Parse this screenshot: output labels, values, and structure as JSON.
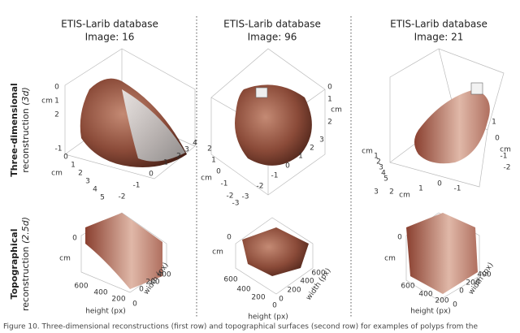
{
  "columns": [
    {
      "title": "ETIS-Larib database",
      "image": "Image: 16"
    },
    {
      "title": "ETIS-Larib database",
      "image": "Image: 96"
    },
    {
      "title": "ETIS-Larib database",
      "image": "Image: 21"
    }
  ],
  "rows": [
    {
      "label": "Three-dimensional",
      "sublabel": "reconstruction",
      "tag": "(3d)"
    },
    {
      "label": "Topographical",
      "sublabel": "reconstruction",
      "tag": "(2.5d)"
    }
  ],
  "panels": [
    {
      "ticks": [
        "0",
        "1",
        "2",
        "cm",
        "-1",
        "0",
        "1",
        "2",
        "3",
        "4",
        "5",
        "cm",
        "-2",
        "-1",
        "0",
        "1",
        "2",
        "3",
        "4"
      ]
    },
    {
      "ticks": [
        "0",
        "cm",
        "1",
        "2",
        "2",
        "1",
        "0",
        "cm",
        "-1",
        "-2",
        "-3",
        "-3",
        "-2",
        "-1",
        "0",
        "1",
        "2",
        "3"
      ]
    },
    {
      "ticks": [
        "cm",
        "1",
        "2",
        "3",
        "4",
        "5",
        "3",
        "2",
        "cm",
        "1",
        "0",
        "-1",
        "1",
        "cm",
        "0",
        "-1",
        "-2"
      ]
    },
    {
      "ticks": [
        "0",
        "cm",
        "600",
        "400",
        "200",
        "0",
        "0",
        "200",
        "400"
      ],
      "xlabel": "height (px)",
      "ylabel": "width (px)"
    },
    {
      "ticks": [
        "0",
        "cm",
        "600",
        "400",
        "200",
        "0",
        "0",
        "200",
        "400",
        "600"
      ],
      "xlabel": "height (px)",
      "ylabel": "width (px)"
    },
    {
      "ticks": [
        "0",
        "cm",
        "600",
        "400",
        "200",
        "0",
        "0",
        "200",
        "400"
      ],
      "xlabel": "height (px)",
      "ylabel": "width (px)"
    }
  ],
  "caption": "Figure 10. Three-dimensional reconstructions (first row) and topographical surfaces (second row) for examples of polyps from the"
}
